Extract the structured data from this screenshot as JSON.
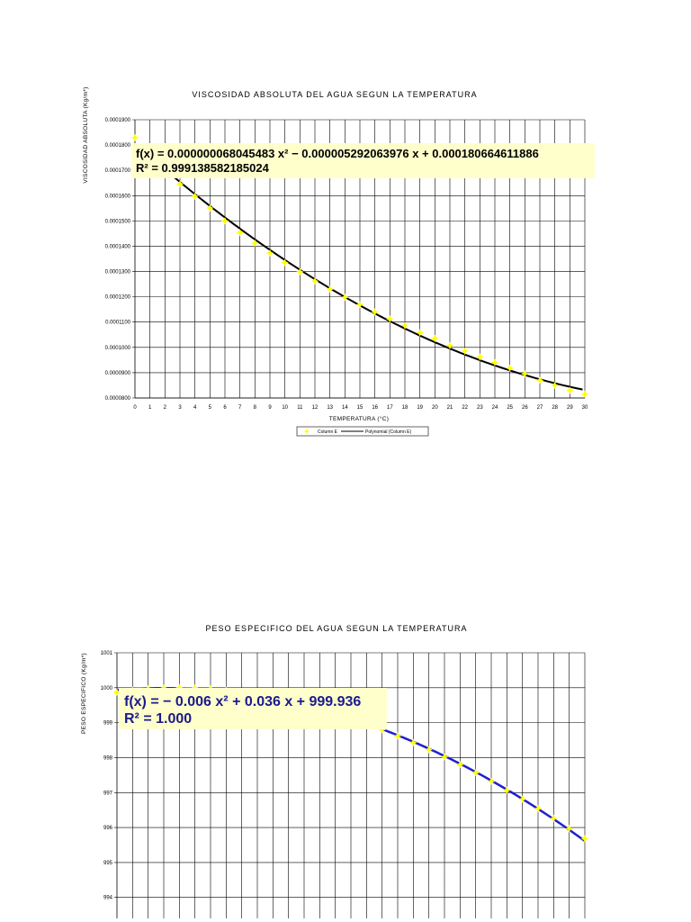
{
  "colors": {
    "point": "#ffff00",
    "trend1": "#000000",
    "trend2": "#1f1fd0",
    "eq_box": "#ffffcc",
    "eq_text1": "#000000",
    "eq_text2": "#1a1a8c"
  },
  "chart_data": [
    {
      "type": "scatter",
      "title": "VISCOSIDAD ABSOLUTA  DEL AGUA SEGUN LA TEMPERATURA",
      "xlabel": "TEMPERATURA (°C)",
      "ylabel": "VISCOSIDAD ABSOLUTA (Kg/m*)",
      "xlim": [
        0,
        30
      ],
      "ylim": [
        8e-05,
        0.00019
      ],
      "xticks": [
        0,
        1,
        2,
        3,
        4,
        5,
        6,
        7,
        8,
        9,
        10,
        11,
        12,
        13,
        14,
        15,
        16,
        17,
        18,
        19,
        20,
        21,
        22,
        23,
        24,
        25,
        26,
        27,
        28,
        29,
        30
      ],
      "ytick_labels": [
        "0.0000800",
        "0.0000900",
        "0.0001000",
        "0.0001100",
        "0.0001200",
        "0.0001300",
        "0.0001400",
        "0.0001500",
        "0.0001600",
        "0.0001700",
        "0.0001800",
        "0.0001900"
      ],
      "yticks": [
        8e-05,
        9e-05,
        0.0001,
        0.00011,
        0.00012,
        0.00013,
        0.00014,
        0.00015,
        0.00016,
        0.00017,
        0.00018,
        0.00019
      ],
      "grid": true,
      "legend_position": "bottom",
      "legend": [
        "Column E",
        "Polynomial (Column E)"
      ],
      "series": [
        {
          "x": [
            0,
            1,
            2,
            3,
            4,
            5,
            6,
            7,
            8,
            9,
            10,
            11,
            12,
            13,
            14,
            15,
            16,
            17,
            18,
            19,
            20,
            21,
            22,
            23,
            24,
            25,
            26,
            27,
            28,
            29,
            30
          ],
          "y": [
            0.0001829,
            0.0001763,
            0.00017,
            0.0001646,
            0.0001598,
            0.0001551,
            0.00015,
            0.0001454,
            0.0001412,
            0.0001373,
            0.0001335,
            0.0001299,
            0.0001262,
            0.000123,
            0.0001198,
            0.0001169,
            0.000114,
            0.0001112,
            0.0001086,
            0.0001058,
            0.0001035,
            0.0001007,
            9.85e-05,
            9.62e-05,
            9.4e-05,
            9.18e-05,
            8.95e-05,
            8.7e-05,
            8.5e-05,
            8.3e-05,
            8.15e-05
          ]
        }
      ],
      "trendline": {
        "type": "polynomial",
        "coefficients": [
          6.804548e-08,
          -5.29206398e-06,
          0.00018066461189
        ],
        "equation": "f(x) = 0.000000068045483 x² − 0.000005292063976 x + 0.000180664611886",
        "r2": "R² = 0.999138582185024"
      }
    },
    {
      "type": "scatter",
      "title": "PESO ESPECIFICO DEL AGUA SEGUN LA TEMPERATURA",
      "xlabel": "",
      "ylabel": "PESO ESPECIFICO (Kg/m*)",
      "xlim": [
        0,
        30
      ],
      "ylim": [
        993.4,
        1001
      ],
      "yticks": [
        994,
        995,
        996,
        997,
        998,
        999,
        1000,
        1001
      ],
      "ytick_labels": [
        "994",
        "995",
        "996",
        "997",
        "998",
        "999",
        "1000",
        "1001"
      ],
      "grid": true,
      "series": [
        {
          "x": [
            0,
            1,
            2,
            3,
            4,
            5,
            6,
            7,
            8,
            9,
            10,
            11,
            12,
            13,
            14,
            15,
            16,
            17,
            18,
            19,
            20,
            21,
            22,
            23,
            24,
            25,
            26,
            27,
            28,
            29,
            30
          ],
          "y": [
            999.87,
            999.93,
            999.97,
            999.99,
            1000.0,
            999.99,
            999.97,
            999.93,
            999.88,
            999.81,
            999.73,
            999.63,
            999.53,
            999.41,
            999.27,
            999.13,
            998.97,
            998.8,
            998.62,
            998.43,
            998.23,
            998.02,
            997.8,
            997.57,
            997.32,
            997.07,
            996.81,
            996.54,
            996.26,
            995.97,
            995.68
          ]
        }
      ],
      "trendline": {
        "type": "polynomial",
        "coefficients": [
          -0.006,
          0.036,
          999.936
        ],
        "equation": "f(x) = − 0.006 x² + 0.036 x + 999.936",
        "r2": "R² = 1.000"
      }
    }
  ]
}
